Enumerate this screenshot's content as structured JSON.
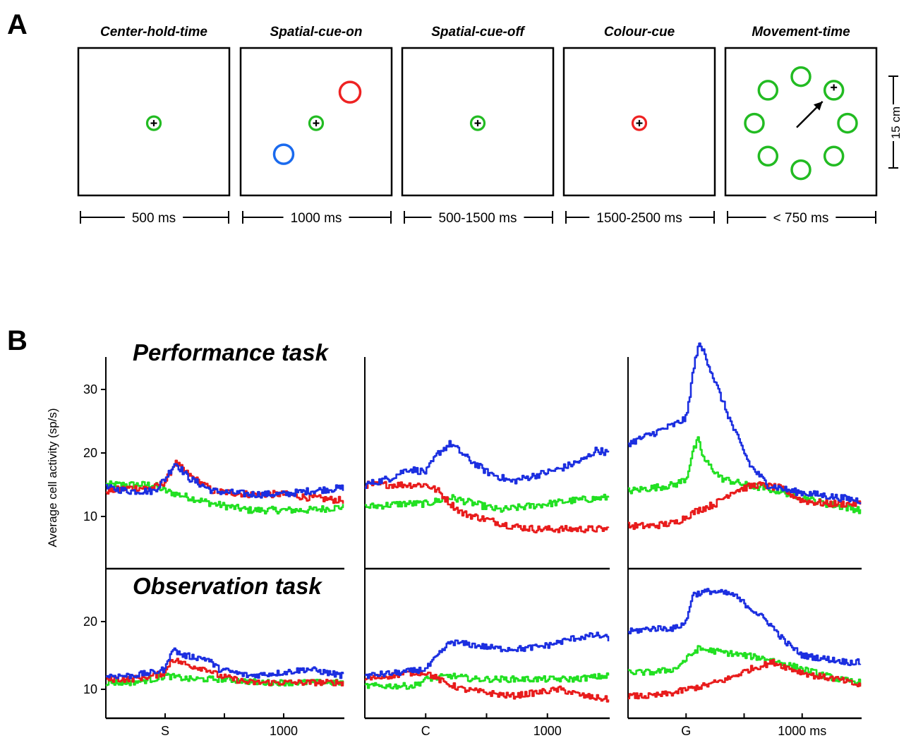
{
  "panel_a": {
    "label": "A",
    "phases": [
      {
        "title": "Center-hold-time",
        "duration": "500 ms"
      },
      {
        "title": "Spatial-cue-on",
        "duration": "1000 ms"
      },
      {
        "title": "Spatial-cue-off",
        "duration": "500-1500 ms"
      },
      {
        "title": "Colour-cue",
        "duration": "1500-2500 ms"
      },
      {
        "title": "Movement-time",
        "duration": "< 750 ms"
      }
    ],
    "scale_label": "15 cm",
    "colors": {
      "green": "#22bb22",
      "red": "#ee2222",
      "blue": "#1a6aee"
    }
  },
  "panel_b": {
    "label": "B",
    "ylabel": "Average cell activity (sp/s)"
  },
  "chart_data": {
    "type": "line",
    "series_colors": {
      "blue": "#1c2fe0",
      "red": "#e81c1c",
      "green": "#22e022"
    },
    "rows": [
      {
        "task": "Performance task",
        "yticks": [
          10,
          20,
          30
        ],
        "ylim": [
          4,
          35
        ]
      },
      {
        "task": "Observation task",
        "yticks": [
          10,
          20
        ],
        "ylim": [
          6,
          26
        ]
      }
    ],
    "columns": [
      {
        "align_label": "S",
        "xlim": [
          -500,
          1500
        ],
        "xticks": [
          {
            "x": 0,
            "label": "S"
          },
          {
            "x": 500,
            "label": ""
          },
          {
            "x": 1000,
            "label": "1000"
          }
        ]
      },
      {
        "align_label": "C",
        "xlim": [
          -500,
          1500
        ],
        "xticks": [
          {
            "x": 0,
            "label": "C"
          },
          {
            "x": 500,
            "label": ""
          },
          {
            "x": 1000,
            "label": "1000"
          }
        ]
      },
      {
        "align_label": "G",
        "xlim": [
          -500,
          1500
        ],
        "xticks": [
          {
            "x": 0,
            "label": "G"
          },
          {
            "x": 500,
            "label": ""
          },
          {
            "x": 1000,
            "label": "1000 ms"
          }
        ]
      }
    ],
    "panels": [
      {
        "row": 0,
        "col": 0,
        "series": {
          "blue": [
            [
              -500,
              14.5
            ],
            [
              -300,
              14
            ],
            [
              -100,
              14
            ],
            [
              0,
              16
            ],
            [
              80,
              18.5
            ],
            [
              200,
              16
            ],
            [
              400,
              14
            ],
            [
              700,
              13.5
            ],
            [
              1000,
              13.5
            ],
            [
              1200,
              14
            ],
            [
              1500,
              14.5
            ]
          ],
          "red": [
            [
              -500,
              14
            ],
            [
              -300,
              14.5
            ],
            [
              -100,
              14.5
            ],
            [
              0,
              15.5
            ],
            [
              80,
              18.5
            ],
            [
              200,
              16.5
            ],
            [
              400,
              14
            ],
            [
              700,
              13.5
            ],
            [
              1000,
              13.5
            ],
            [
              1200,
              13
            ],
            [
              1500,
              12.5
            ]
          ],
          "green": [
            [
              -500,
              15
            ],
            [
              -300,
              15
            ],
            [
              -100,
              15
            ],
            [
              0,
              14
            ],
            [
              200,
              13
            ],
            [
              400,
              12
            ],
            [
              700,
              11
            ],
            [
              1000,
              11
            ],
            [
              1200,
              11
            ],
            [
              1500,
              11.5
            ]
          ]
        }
      },
      {
        "row": 0,
        "col": 1,
        "series": {
          "blue": [
            [
              -500,
              15
            ],
            [
              -300,
              16
            ],
            [
              -150,
              17.5
            ],
            [
              0,
              17
            ],
            [
              100,
              20
            ],
            [
              200,
              21.5
            ],
            [
              350,
              19
            ],
            [
              500,
              17
            ],
            [
              700,
              15.5
            ],
            [
              900,
              16.5
            ],
            [
              1100,
              17.5
            ],
            [
              1300,
              19
            ],
            [
              1400,
              20.5
            ],
            [
              1500,
              20
            ]
          ],
          "red": [
            [
              -500,
              15
            ],
            [
              -200,
              15
            ],
            [
              0,
              15
            ],
            [
              100,
              14
            ],
            [
              200,
              12
            ],
            [
              300,
              10.5
            ],
            [
              500,
              9.5
            ],
            [
              700,
              8.5
            ],
            [
              900,
              8
            ],
            [
              1100,
              8
            ],
            [
              1300,
              8
            ],
            [
              1500,
              8
            ]
          ],
          "green": [
            [
              -500,
              11.5
            ],
            [
              -200,
              12
            ],
            [
              0,
              12
            ],
            [
              200,
              13
            ],
            [
              400,
              12
            ],
            [
              600,
              11
            ],
            [
              800,
              11.5
            ],
            [
              1000,
              12
            ],
            [
              1200,
              12.5
            ],
            [
              1500,
              13
            ]
          ]
        }
      },
      {
        "row": 0,
        "col": 2,
        "series": {
          "blue": [
            [
              -500,
              21.5
            ],
            [
              -300,
              23
            ],
            [
              -100,
              24.5
            ],
            [
              0,
              25.5
            ],
            [
              50,
              32
            ],
            [
              100,
              37
            ],
            [
              150,
              36
            ],
            [
              250,
              31
            ],
            [
              400,
              24
            ],
            [
              550,
              18
            ],
            [
              700,
              15
            ],
            [
              900,
              14
            ],
            [
              1100,
              13.5
            ],
            [
              1300,
              13
            ],
            [
              1500,
              12.5
            ]
          ],
          "red": [
            [
              -500,
              8.5
            ],
            [
              -300,
              8.5
            ],
            [
              -100,
              9
            ],
            [
              0,
              10
            ],
            [
              100,
              11
            ],
            [
              250,
              12
            ],
            [
              400,
              14
            ],
            [
              600,
              15
            ],
            [
              800,
              14.5
            ],
            [
              1000,
              12.5
            ],
            [
              1200,
              12
            ],
            [
              1500,
              12
            ]
          ],
          "green": [
            [
              -500,
              14
            ],
            [
              -300,
              14.5
            ],
            [
              -100,
              15
            ],
            [
              0,
              16
            ],
            [
              50,
              20
            ],
            [
              100,
              22
            ],
            [
              150,
              19
            ],
            [
              300,
              16
            ],
            [
              500,
              15
            ],
            [
              800,
              14
            ],
            [
              1000,
              13
            ],
            [
              1200,
              12
            ],
            [
              1500,
              11
            ]
          ]
        }
      },
      {
        "row": 1,
        "col": 0,
        "series": {
          "blue": [
            [
              -500,
              12
            ],
            [
              -300,
              12
            ],
            [
              -100,
              12.5
            ],
            [
              0,
              13
            ],
            [
              50,
              16
            ],
            [
              150,
              15
            ],
            [
              350,
              14.5
            ],
            [
              450,
              13
            ],
            [
              700,
              12
            ],
            [
              1000,
              12.5
            ],
            [
              1200,
              13
            ],
            [
              1500,
              12
            ]
          ],
          "red": [
            [
              -500,
              11.5
            ],
            [
              -300,
              11.5
            ],
            [
              -100,
              12
            ],
            [
              0,
              12.5
            ],
            [
              50,
              14.5
            ],
            [
              200,
              13.5
            ],
            [
              350,
              13
            ],
            [
              450,
              12
            ],
            [
              700,
              11
            ],
            [
              1000,
              11
            ],
            [
              1200,
              11
            ],
            [
              1500,
              11
            ]
          ],
          "green": [
            [
              -500,
              11
            ],
            [
              -300,
              11
            ],
            [
              -100,
              11.5
            ],
            [
              0,
              12
            ],
            [
              200,
              11.5
            ],
            [
              500,
              11.5
            ],
            [
              800,
              11
            ],
            [
              1100,
              11
            ],
            [
              1300,
              11
            ],
            [
              1500,
              11
            ]
          ]
        }
      },
      {
        "row": 1,
        "col": 1,
        "series": {
          "blue": [
            [
              -500,
              12
            ],
            [
              -200,
              12.5
            ],
            [
              0,
              13
            ],
            [
              100,
              15
            ],
            [
              200,
              17
            ],
            [
              400,
              16.5
            ],
            [
              600,
              16
            ],
            [
              800,
              16
            ],
            [
              1000,
              16.5
            ],
            [
              1200,
              17.5
            ],
            [
              1400,
              18
            ],
            [
              1500,
              17.5
            ]
          ],
          "red": [
            [
              -500,
              11.5
            ],
            [
              -300,
              12
            ],
            [
              -100,
              12.5
            ],
            [
              0,
              12.5
            ],
            [
              150,
              11
            ],
            [
              300,
              10
            ],
            [
              500,
              9.5
            ],
            [
              700,
              9
            ],
            [
              900,
              9.5
            ],
            [
              1100,
              10
            ],
            [
              1300,
              9
            ],
            [
              1500,
              8.5
            ]
          ],
          "green": [
            [
              -500,
              10.5
            ],
            [
              -300,
              10.5
            ],
            [
              -100,
              10.5
            ],
            [
              0,
              11.5
            ],
            [
              200,
              12
            ],
            [
              400,
              11.5
            ],
            [
              700,
              11.5
            ],
            [
              1000,
              11.5
            ],
            [
              1200,
              11.5
            ],
            [
              1500,
              12
            ]
          ]
        }
      },
      {
        "row": 1,
        "col": 2,
        "series": {
          "blue": [
            [
              -500,
              18.5
            ],
            [
              -300,
              19
            ],
            [
              -100,
              19
            ],
            [
              0,
              20
            ],
            [
              50,
              24
            ],
            [
              200,
              24.5
            ],
            [
              400,
              24
            ],
            [
              550,
              22
            ],
            [
              700,
              20
            ],
            [
              850,
              17
            ],
            [
              1000,
              15
            ],
            [
              1200,
              14.5
            ],
            [
              1400,
              14
            ],
            [
              1500,
              14
            ]
          ],
          "red": [
            [
              -500,
              9
            ],
            [
              -300,
              9
            ],
            [
              -100,
              9.5
            ],
            [
              0,
              10
            ],
            [
              150,
              10.5
            ],
            [
              350,
              11.5
            ],
            [
              550,
              13
            ],
            [
              750,
              14
            ],
            [
              900,
              13
            ],
            [
              1100,
              12
            ],
            [
              1300,
              11.5
            ],
            [
              1500,
              10.5
            ]
          ],
          "green": [
            [
              -500,
              12.5
            ],
            [
              -300,
              12.5
            ],
            [
              -100,
              13
            ],
            [
              0,
              14.5
            ],
            [
              100,
              16
            ],
            [
              300,
              15.5
            ],
            [
              500,
              15
            ],
            [
              700,
              14.5
            ],
            [
              900,
              13.5
            ],
            [
              1100,
              12.5
            ],
            [
              1300,
              11.5
            ],
            [
              1500,
              11
            ]
          ]
        }
      }
    ]
  }
}
